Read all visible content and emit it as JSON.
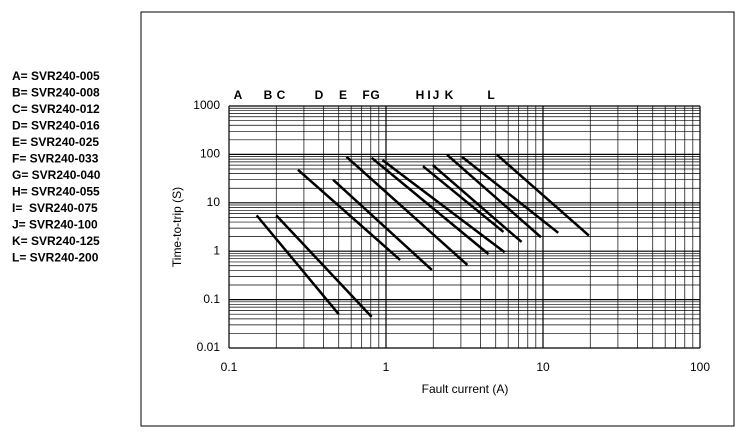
{
  "chart_data": {
    "type": "line",
    "xlabel": "Fault current (A)",
    "ylabel": "Time-to-trip (S)",
    "xscale": "log",
    "yscale": "log",
    "grid": true,
    "minor_grid": true,
    "xlim": [
      0.1,
      100
    ],
    "ylim": [
      0.01,
      1000
    ],
    "xticks": [
      0.1,
      1,
      10,
      100
    ],
    "yticks": [
      0.01,
      0.1,
      1,
      10,
      100,
      1000
    ],
    "legend": [
      "A= SVR240-005",
      "B= SVR240-008",
      "C= SVR240-012",
      "D= SVR240-016",
      "E= SVR240-025",
      "F= SVR240-033",
      "G= SVR240-040",
      "H= SVR240-055",
      "I=  SVR240-075",
      "J= SVR240-100",
      "K= SVR240-125",
      "L= SVR240-200"
    ],
    "series": [
      {
        "name": "A",
        "color": "#000000",
        "x": [
          0.15,
          0.5
        ],
        "values": [
          5.5,
          0.05
        ]
      },
      {
        "name": "B",
        "color": "#000000",
        "x": [
          0.2,
          0.81
        ],
        "values": [
          5.5,
          0.044
        ]
      },
      {
        "name": "C",
        "color": "#000000",
        "x": [
          0.275,
          1.23
        ],
        "values": [
          48,
          0.66
        ]
      },
      {
        "name": "D",
        "color": "#000000",
        "x": [
          0.46,
          1.96
        ],
        "values": [
          30,
          0.41
        ]
      },
      {
        "name": "E",
        "color": "#000000",
        "x": [
          0.56,
          3.3
        ],
        "values": [
          89,
          0.52
        ]
      },
      {
        "name": "F",
        "color": "#000000",
        "x": [
          0.81,
          4.5
        ],
        "values": [
          85,
          0.87
        ]
      },
      {
        "name": "G",
        "color": "#000000",
        "x": [
          0.95,
          5.7
        ],
        "values": [
          76,
          0.95
        ]
      },
      {
        "name": "H",
        "color": "#000000",
        "x": [
          1.72,
          5.6
        ],
        "values": [
          57,
          2.5
        ]
      },
      {
        "name": "I",
        "color": "#000000",
        "x": [
          1.99,
          7.3
        ],
        "values": [
          60,
          1.55
        ]
      },
      {
        "name": "J",
        "color": "#000000",
        "x": [
          2.45,
          9.7
        ],
        "values": [
          98,
          1.95
        ]
      },
      {
        "name": "K",
        "color": "#000000",
        "x": [
          3.05,
          12.5
        ],
        "values": [
          89,
          2.4
        ]
      },
      {
        "name": "L",
        "color": "#000000",
        "x": [
          5.1,
          19.6
        ],
        "values": [
          98,
          2.1
        ]
      }
    ]
  }
}
